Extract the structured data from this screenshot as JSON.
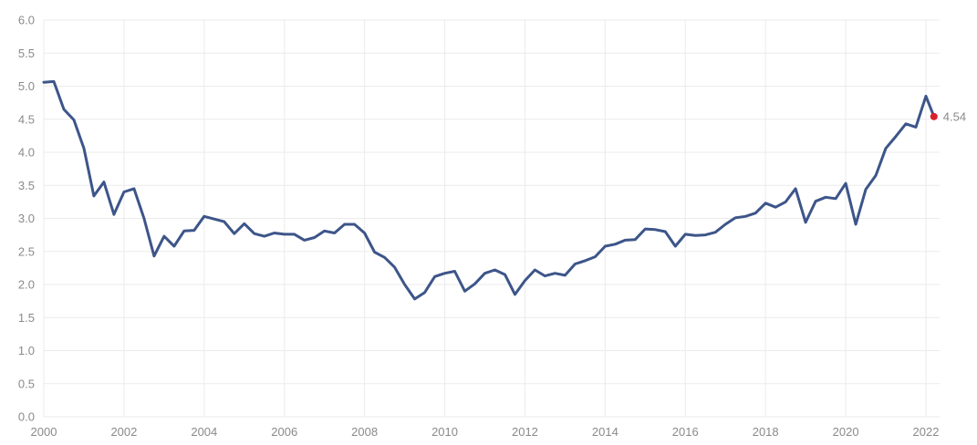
{
  "chart_data": {
    "type": "line",
    "title": "",
    "xlabel": "",
    "ylabel": "",
    "xlim": [
      2000,
      2022.2
    ],
    "ylim": [
      0,
      6
    ],
    "grid": true,
    "x_ticks": [
      2000,
      2002,
      2004,
      2006,
      2008,
      2010,
      2012,
      2014,
      2016,
      2018,
      2020,
      2022
    ],
    "y_ticks": [
      0.0,
      0.5,
      1.0,
      1.5,
      2.0,
      2.5,
      3.0,
      3.5,
      4.0,
      4.5,
      5.0,
      5.5,
      6.0
    ],
    "end_label": "4.54",
    "colors": {
      "line": "#3d5589",
      "end_marker": "#d9202a",
      "grid": "#ebebeb",
      "text": "#8a8a8a"
    },
    "series": [
      {
        "x": [
          2000.0,
          2000.25,
          2000.5,
          2000.75,
          2001.0,
          2001.25,
          2001.5,
          2001.75,
          2002.0,
          2002.25,
          2002.5,
          2002.75,
          2003.0,
          2003.25,
          2003.5,
          2003.75,
          2004.0,
          2004.25,
          2004.5,
          2004.75,
          2005.0,
          2005.25,
          2005.5,
          2005.75,
          2006.0,
          2006.25,
          2006.5,
          2006.75,
          2007.0,
          2007.25,
          2007.5,
          2007.75,
          2008.0,
          2008.25,
          2008.5,
          2008.75,
          2009.0,
          2009.25,
          2009.5,
          2009.75,
          2010.0,
          2010.25,
          2010.5,
          2010.75,
          2011.0,
          2011.25,
          2011.5,
          2011.75,
          2012.0,
          2012.25,
          2012.5,
          2012.75,
          2013.0,
          2013.25,
          2013.5,
          2013.75,
          2014.0,
          2014.25,
          2014.5,
          2014.75,
          2015.0,
          2015.25,
          2015.5,
          2015.75,
          2016.0,
          2016.25,
          2016.5,
          2016.75,
          2017.0,
          2017.25,
          2017.5,
          2017.75,
          2018.0,
          2018.25,
          2018.5,
          2018.75,
          2019.0,
          2019.25,
          2019.5,
          2019.75,
          2020.0,
          2020.25,
          2020.5,
          2020.75,
          2021.0,
          2021.25,
          2021.5,
          2021.75,
          2022.0,
          2022.2
        ],
        "values": [
          5.06,
          5.07,
          4.65,
          4.49,
          4.06,
          3.34,
          3.55,
          3.06,
          3.4,
          3.45,
          3.0,
          2.43,
          2.73,
          2.58,
          2.81,
          2.82,
          3.03,
          2.99,
          2.95,
          2.77,
          2.92,
          2.77,
          2.73,
          2.78,
          2.76,
          2.76,
          2.67,
          2.71,
          2.81,
          2.78,
          2.91,
          2.91,
          2.78,
          2.49,
          2.41,
          2.26,
          2.0,
          1.78,
          1.88,
          2.12,
          2.17,
          2.2,
          1.9,
          2.01,
          2.17,
          2.22,
          2.15,
          1.85,
          2.06,
          2.22,
          2.13,
          2.17,
          2.14,
          2.31,
          2.36,
          2.42,
          2.58,
          2.61,
          2.67,
          2.68,
          2.84,
          2.83,
          2.8,
          2.58,
          2.76,
          2.74,
          2.75,
          2.79,
          2.91,
          3.01,
          3.03,
          3.08,
          3.23,
          3.17,
          3.25,
          3.45,
          2.94,
          3.26,
          3.32,
          3.3,
          3.53,
          2.91,
          3.44,
          3.65,
          4.06,
          4.24,
          4.43,
          4.38,
          4.85,
          4.54
        ]
      }
    ]
  }
}
